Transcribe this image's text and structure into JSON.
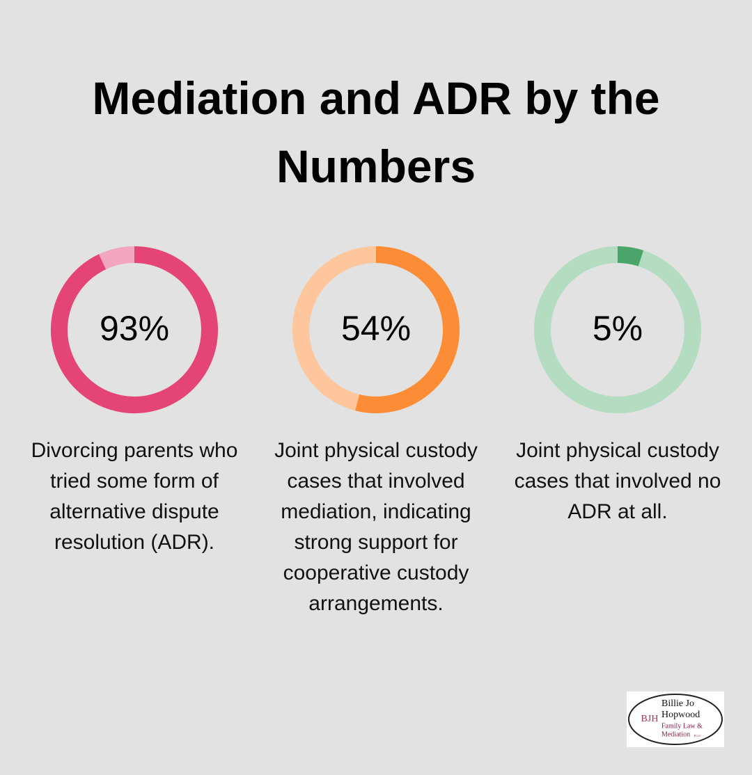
{
  "title": "Mediation and ADR by the Numbers",
  "chart_data": [
    {
      "type": "donut",
      "values": [
        93
      ],
      "value_labels": [
        "93%"
      ],
      "color": "#e44576",
      "track_color": "#f2a6bf",
      "caption": "Divorcing parents who tried some form of alternative dispute resolution (ADR)."
    },
    {
      "type": "donut",
      "values": [
        54
      ],
      "value_labels": [
        "54%"
      ],
      "color": "#fd8c36",
      "track_color": "#fdc69c",
      "caption": "Joint physical custody cases that involved mediation, indicating strong support for cooperative custody arrangements."
    },
    {
      "type": "donut",
      "values": [
        5
      ],
      "value_labels": [
        "5%"
      ],
      "color": "#49a56a",
      "track_color": "#b3dcc0",
      "caption": "Joint physical custody cases that involved no ADR at all."
    }
  ],
  "logo": {
    "initials": "BJH",
    "line1": "Billie Jo",
    "line2": "Hopwood",
    "line3": "Family Law &",
    "line4": "Mediation",
    "suffix": "PLLC"
  }
}
